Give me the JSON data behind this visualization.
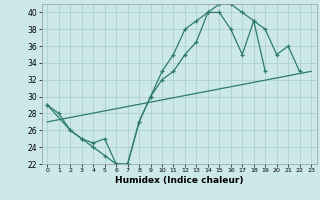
{
  "xlabel": "Humidex (Indice chaleur)",
  "bg_color": "#cce8e8",
  "grid_color": "#aacccc",
  "line_color": "#2e7b6e",
  "xlim": [
    -0.5,
    23.5
  ],
  "ylim": [
    22,
    41
  ],
  "xticks": [
    0,
    1,
    2,
    3,
    4,
    5,
    6,
    7,
    8,
    9,
    10,
    11,
    12,
    13,
    14,
    15,
    16,
    17,
    18,
    19,
    20,
    21,
    22,
    23
  ],
  "yticks": [
    22,
    24,
    26,
    28,
    30,
    32,
    34,
    36,
    38,
    40
  ],
  "line1_x": [
    0,
    1,
    2,
    3,
    4,
    5,
    6,
    7,
    8,
    9,
    10,
    11,
    12,
    13,
    14,
    15,
    16,
    17,
    18,
    19,
    20,
    21,
    22
  ],
  "line1_y": [
    29,
    28,
    26,
    25,
    24,
    23,
    22,
    22,
    27,
    30,
    33,
    35,
    38,
    39,
    40,
    41,
    41,
    40,
    39,
    38,
    35,
    36,
    33
  ],
  "line2_x": [
    0,
    2,
    3,
    4,
    5,
    6,
    7,
    8,
    9,
    10,
    11,
    12,
    13,
    14,
    15,
    16,
    17,
    18,
    19,
    20,
    21,
    22,
    23
  ],
  "line2_y": [
    29,
    26,
    25,
    24.5,
    25,
    22,
    22,
    27,
    30,
    32,
    33,
    35,
    36.5,
    40,
    40,
    38,
    35,
    39,
    33,
    null,
    null,
    null,
    null
  ],
  "line3_x": [
    0,
    23
  ],
  "line3_y": [
    27,
    33
  ]
}
